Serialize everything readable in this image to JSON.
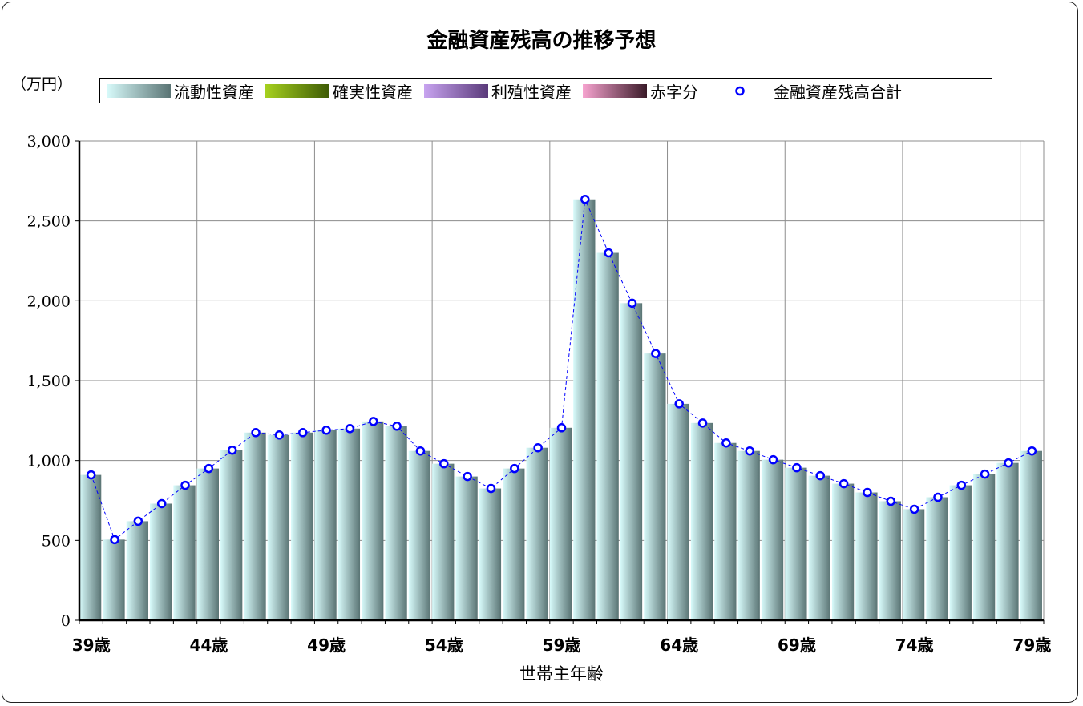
{
  "chart_data": {
    "type": "bar",
    "title": "金融資産残高の推移予想",
    "unit_label": "（万円）",
    "xlabel": "世帯主年齢",
    "ylim": [
      0,
      3000
    ],
    "y_ticks": [
      "0",
      "500",
      "1,000",
      "1,500",
      "2,000",
      "2,500",
      "3,000"
    ],
    "x_tick_labels": [
      "39歳",
      "44歳",
      "49歳",
      "54歳",
      "59歳",
      "64歳",
      "69歳",
      "74歳",
      "79歳"
    ],
    "legend": [
      "流動性資産",
      "確実性資産",
      "利殖性資産",
      "赤字分",
      "金融資産残高合計"
    ],
    "grid": true,
    "categories": [
      39,
      40,
      41,
      42,
      43,
      44,
      45,
      46,
      47,
      48,
      49,
      50,
      51,
      52,
      53,
      54,
      55,
      56,
      57,
      58,
      59,
      60,
      61,
      62,
      63,
      64,
      65,
      66,
      67,
      68,
      69,
      70,
      71,
      72,
      73,
      74,
      75,
      76,
      77,
      78,
      79
    ],
    "series": [
      {
        "name": "流動性資産",
        "type": "bar",
        "values": [
          910,
          505,
          620,
          730,
          845,
          950,
          1065,
          1175,
          1160,
          1175,
          1190,
          1200,
          1245,
          1215,
          1060,
          980,
          900,
          825,
          950,
          1080,
          1205,
          2635,
          2300,
          1985,
          1670,
          1355,
          1235,
          1110,
          1060,
          1005,
          955,
          905,
          855,
          800,
          745,
          695,
          770,
          845,
          915,
          985,
          1060
        ]
      },
      {
        "name": "確実性資産",
        "type": "bar",
        "values": [
          0,
          0,
          0,
          0,
          0,
          0,
          0,
          0,
          0,
          0,
          0,
          0,
          0,
          0,
          0,
          0,
          0,
          0,
          0,
          0,
          0,
          0,
          0,
          0,
          0,
          0,
          0,
          0,
          0,
          0,
          0,
          0,
          0,
          0,
          0,
          0,
          0,
          0,
          0,
          0,
          0
        ]
      },
      {
        "name": "利殖性資産",
        "type": "bar",
        "values": [
          0,
          0,
          0,
          0,
          0,
          0,
          0,
          0,
          0,
          0,
          0,
          0,
          0,
          0,
          0,
          0,
          0,
          0,
          0,
          0,
          0,
          0,
          0,
          0,
          0,
          0,
          0,
          0,
          0,
          0,
          0,
          0,
          0,
          0,
          0,
          0,
          0,
          0,
          0,
          0,
          0
        ]
      },
      {
        "name": "赤字分",
        "type": "bar",
        "values": [
          0,
          0,
          0,
          0,
          0,
          0,
          0,
          0,
          0,
          0,
          0,
          0,
          0,
          0,
          0,
          0,
          0,
          0,
          0,
          0,
          0,
          0,
          0,
          0,
          0,
          0,
          0,
          0,
          0,
          0,
          0,
          0,
          0,
          0,
          0,
          0,
          0,
          0,
          0,
          0,
          0
        ]
      },
      {
        "name": "金融資産残高合計",
        "type": "line",
        "values": [
          910,
          505,
          620,
          730,
          845,
          950,
          1065,
          1175,
          1160,
          1175,
          1190,
          1200,
          1245,
          1215,
          1060,
          980,
          900,
          825,
          950,
          1080,
          1205,
          2635,
          2300,
          1985,
          1670,
          1355,
          1235,
          1110,
          1060,
          1005,
          955,
          905,
          855,
          800,
          745,
          695,
          770,
          845,
          915,
          985,
          1060
        ]
      }
    ],
    "colors": {
      "liquid_light": "#d8fbfb",
      "liquid_dark": "#5a7474",
      "certain_light": "#a6d11f",
      "certain_dark": "#3d5a05",
      "invest_light": "#c8a4f0",
      "invest_dark": "#5a3a7a",
      "deficit_light": "#f7a4d0",
      "deficit_dark": "#3a1a28",
      "total_line": "#0000ff"
    }
  }
}
